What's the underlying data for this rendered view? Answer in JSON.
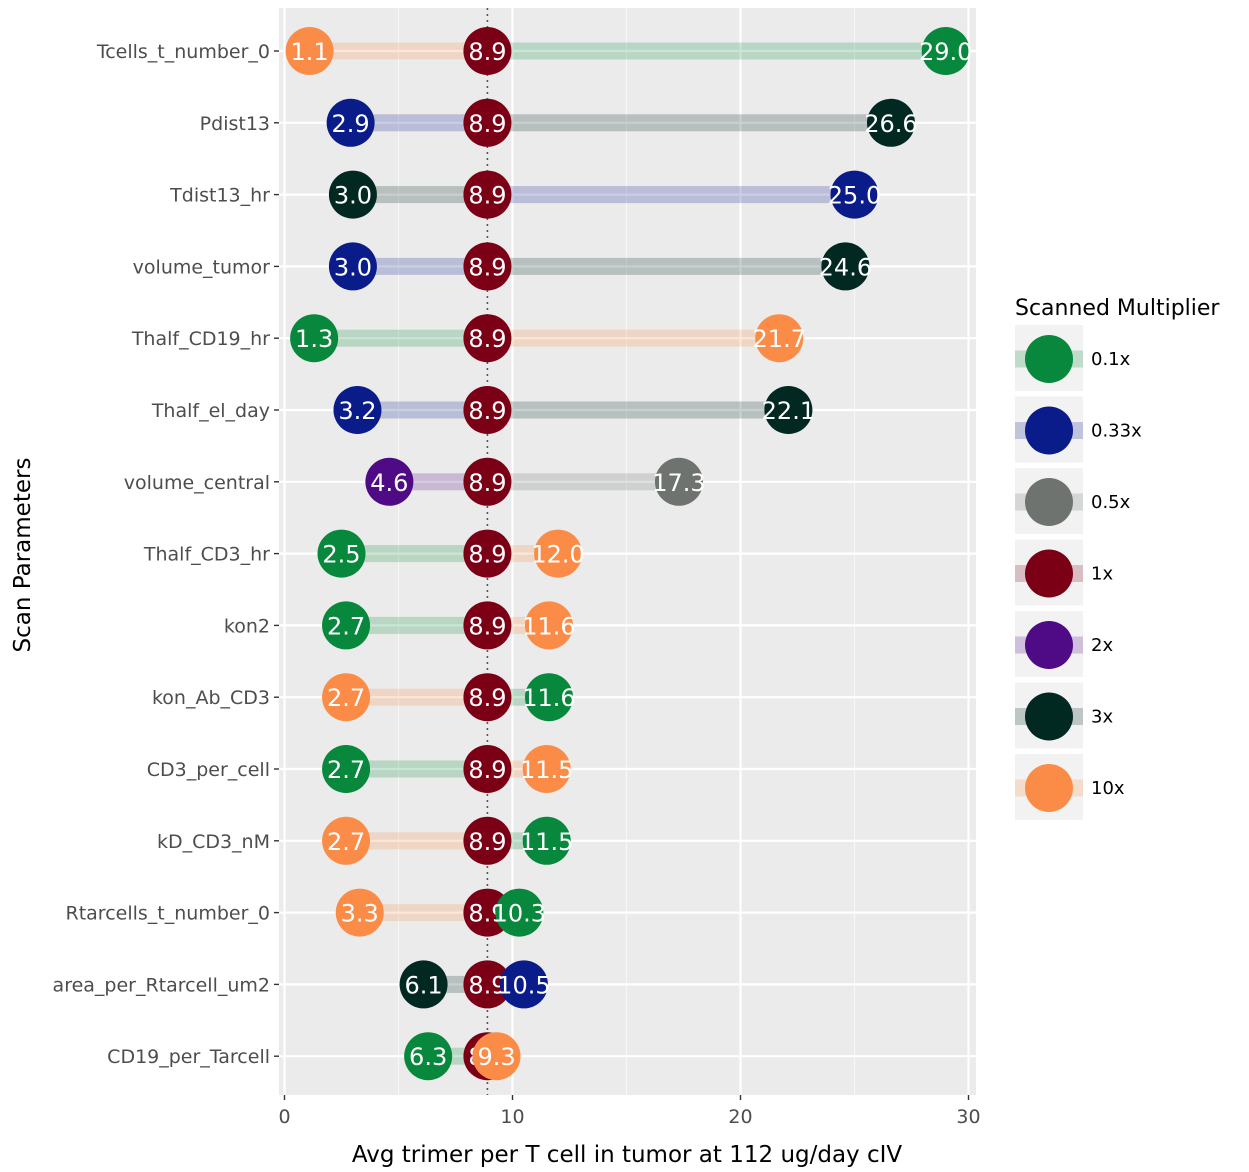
{
  "chart_data": {
    "type": "scatter",
    "subtype": "tornado-dot-plot",
    "xlabel": "Avg trimer per T cell in tumor at 112 ug/day cIV",
    "ylabel": "Scan Parameters",
    "xlim": [
      -0.3,
      30.3
    ],
    "x_ticks": [
      0,
      10,
      20,
      30
    ],
    "x_tick_labels": [
      "0",
      "10",
      "20",
      "30"
    ],
    "grid": true,
    "baseline_value": 8.9,
    "baseline_style": "dotted",
    "categories": [
      "Tcells_t_number_0",
      "Pdist13",
      "Tdist13_hr",
      "volume_tumor",
      "Thalf_CD19_hr",
      "Thalf_el_day",
      "volume_central",
      "Thalf_CD3_hr",
      "kon2",
      "kon_Ab_CD3",
      "CD3_per_cell",
      "kD_CD3_nM",
      "Rtarcells_t_number_0",
      "area_per_Rtarcell_um2",
      "CD19_per_Tarcell"
    ],
    "points": [
      {
        "param": "Tcells_t_number_0",
        "low": {
          "multiplier": "10x",
          "value": 1.1,
          "label": "1.1"
        },
        "high": {
          "multiplier": "0.1x",
          "value": 29.0,
          "label": "29.0"
        },
        "base_label": "8.9"
      },
      {
        "param": "Pdist13",
        "low": {
          "multiplier": "0.33x",
          "value": 2.9,
          "label": "2.9"
        },
        "high": {
          "multiplier": "3x",
          "value": 26.6,
          "label": "26.6"
        },
        "base_label": "8.9"
      },
      {
        "param": "Tdist13_hr",
        "low": {
          "multiplier": "3x",
          "value": 3.0,
          "label": "3.0"
        },
        "high": {
          "multiplier": "0.33x",
          "value": 25.0,
          "label": "25.0"
        },
        "base_label": "8.9"
      },
      {
        "param": "volume_tumor",
        "low": {
          "multiplier": "0.33x",
          "value": 3.0,
          "label": "3.0"
        },
        "high": {
          "multiplier": "3x",
          "value": 24.6,
          "label": "24.6"
        },
        "base_label": "8.9"
      },
      {
        "param": "Thalf_CD19_hr",
        "low": {
          "multiplier": "0.1x",
          "value": 1.3,
          "label": "1.3"
        },
        "high": {
          "multiplier": "10x",
          "value": 21.7,
          "label": "21.7"
        },
        "base_label": "8.9"
      },
      {
        "param": "Thalf_el_day",
        "low": {
          "multiplier": "0.33x",
          "value": 3.2,
          "label": "3.2"
        },
        "high": {
          "multiplier": "3x",
          "value": 22.1,
          "label": "22.1"
        },
        "base_label": "8.9"
      },
      {
        "param": "volume_central",
        "low": {
          "multiplier": "2x",
          "value": 4.6,
          "label": "4.6"
        },
        "high": {
          "multiplier": "0.5x",
          "value": 17.3,
          "label": "17.3"
        },
        "base_label": "8.9"
      },
      {
        "param": "Thalf_CD3_hr",
        "low": {
          "multiplier": "0.1x",
          "value": 2.5,
          "label": "2.5"
        },
        "high": {
          "multiplier": "10x",
          "value": 12.0,
          "label": "12.0"
        },
        "base_label": "8.9"
      },
      {
        "param": "kon2",
        "low": {
          "multiplier": "0.1x",
          "value": 2.7,
          "label": "2.7"
        },
        "high": {
          "multiplier": "10x",
          "value": 11.6,
          "label": "11.6"
        },
        "base_label": "8.9"
      },
      {
        "param": "kon_Ab_CD3",
        "low": {
          "multiplier": "10x",
          "value": 2.7,
          "label": "2.7"
        },
        "high": {
          "multiplier": "0.1x",
          "value": 11.6,
          "label": "11.6"
        },
        "base_label": "8.9"
      },
      {
        "param": "CD3_per_cell",
        "low": {
          "multiplier": "0.1x",
          "value": 2.7,
          "label": "2.7"
        },
        "high": {
          "multiplier": "10x",
          "value": 11.5,
          "label": "11.5"
        },
        "base_label": "8.9"
      },
      {
        "param": "kD_CD3_nM",
        "low": {
          "multiplier": "10x",
          "value": 2.7,
          "label": "2.7"
        },
        "high": {
          "multiplier": "0.1x",
          "value": 11.5,
          "label": "11.5"
        },
        "base_label": "8.9"
      },
      {
        "param": "Rtarcells_t_number_0",
        "low": {
          "multiplier": "10x",
          "value": 3.3,
          "label": "3.3"
        },
        "high": {
          "multiplier": "0.1x",
          "value": 10.3,
          "label": "10.3"
        },
        "base_label": "8.9"
      },
      {
        "param": "area_per_Rtarcell_um2",
        "low": {
          "multiplier": "3x",
          "value": 6.1,
          "label": "6.1"
        },
        "high": {
          "multiplier": "0.33x",
          "value": 10.5,
          "label": "10.5"
        },
        "base_label": "8.9"
      },
      {
        "param": "CD19_per_Tarcell",
        "low": {
          "multiplier": "0.1x",
          "value": 6.3,
          "label": "6.3"
        },
        "high": {
          "multiplier": "10x",
          "value": 9.3,
          "label": "9.3"
        },
        "base_label": "8.9"
      }
    ],
    "legend": {
      "title": "Scanned Multiplier",
      "placement": "right",
      "entries": [
        {
          "name": "0.1x",
          "color": "#07883c"
        },
        {
          "name": "0.33x",
          "color": "#0a1b8a"
        },
        {
          "name": "0.5x",
          "color": "#6f7370"
        },
        {
          "name": "1x",
          "color": "#7b0015"
        },
        {
          "name": "2x",
          "color": "#4f0a85"
        },
        {
          "name": "3x",
          "color": "#022822"
        },
        {
          "name": "10x",
          "color": "#fb8c48"
        }
      ]
    }
  }
}
